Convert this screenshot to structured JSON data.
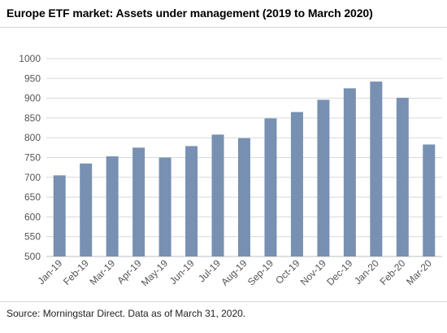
{
  "title": "Europe ETF market: Assets under management (2019 to March 2020)",
  "source": "Source: Morningstar Direct. Data as of March 31, 2020.",
  "chart_data": {
    "type": "bar",
    "title": "Europe ETF market: Assets under management (2019 to March 2020)",
    "xlabel": "",
    "ylabel": "",
    "categories": [
      "Jan-19",
      "Feb-19",
      "Mar-19",
      "Apr-19",
      "May-19",
      "Jun-19",
      "Jul-19",
      "Aug-19",
      "Sep-19",
      "Oct-19",
      "Nov-19",
      "Dec-19",
      "Jan-20",
      "Feb-20",
      "Mar-20"
    ],
    "values": [
      705,
      735,
      753,
      775,
      750,
      779,
      808,
      799,
      849,
      865,
      896,
      925,
      942,
      901,
      783
    ],
    "ylim": [
      500,
      1000
    ],
    "yticks": [
      500,
      550,
      600,
      650,
      700,
      750,
      800,
      850,
      900,
      950,
      1000
    ],
    "grid": true,
    "bar_color": "#7890b2",
    "legend": "none"
  }
}
